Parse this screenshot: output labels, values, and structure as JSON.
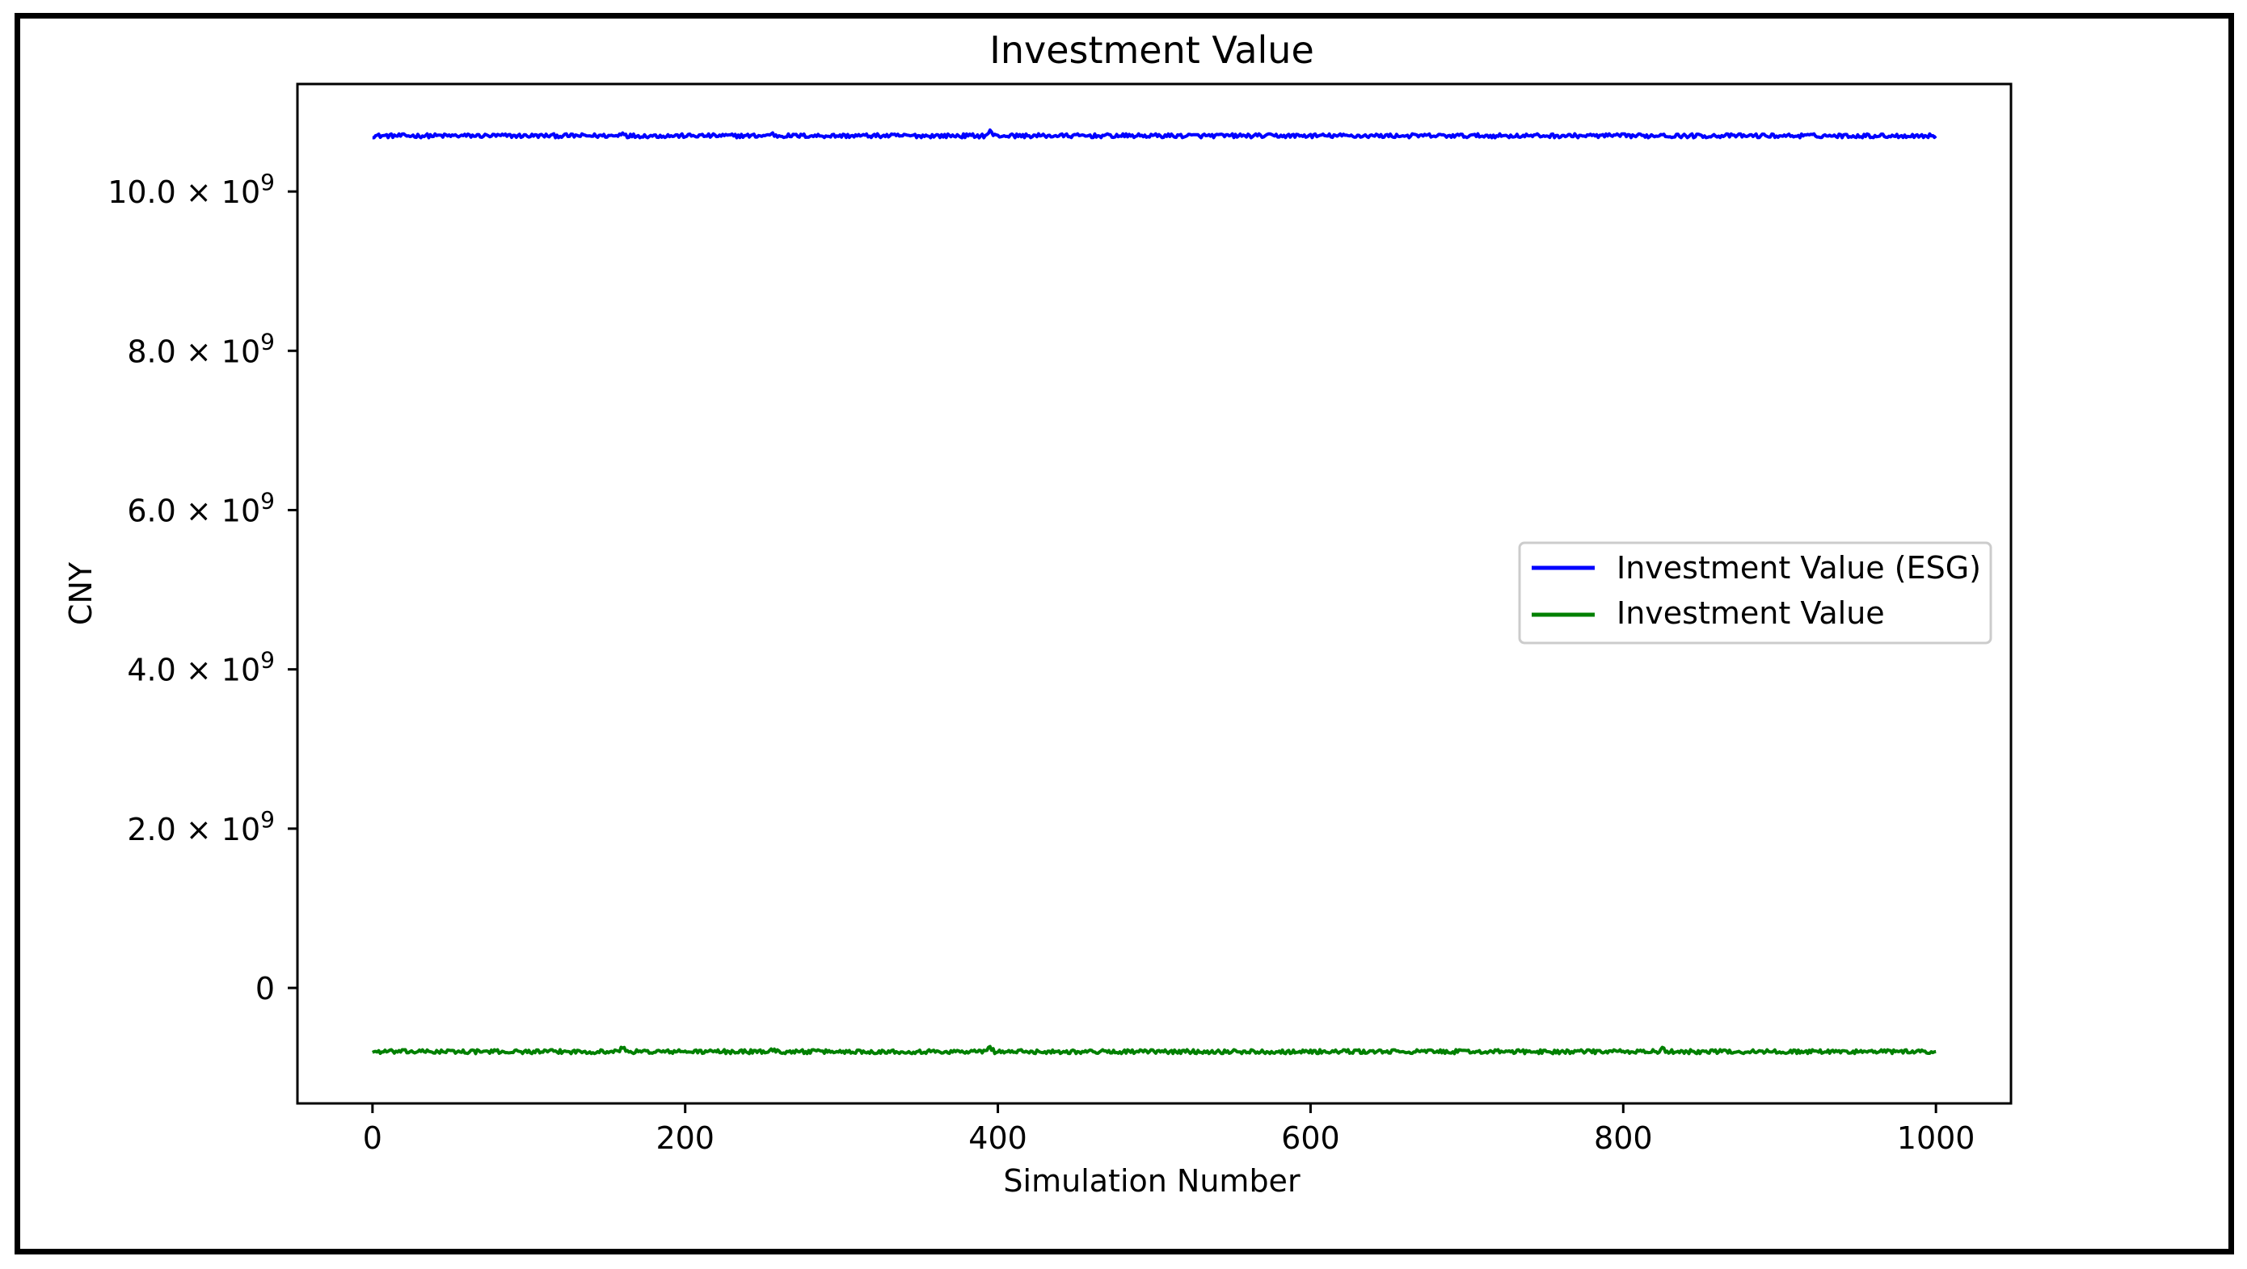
{
  "chart_data": {
    "type": "line",
    "title": "Investment Value",
    "xlabel": "Simulation Number",
    "ylabel": "CNY",
    "xlim": [
      -48,
      1048
    ],
    "ylim": [
      -1450000000,
      11350000000
    ],
    "x_ticks": [
      0,
      200,
      400,
      600,
      800,
      1000
    ],
    "x_tick_labels": [
      "0",
      "200",
      "400",
      "600",
      "800",
      "1000"
    ],
    "y_ticks": [
      0,
      2000000000,
      4000000000,
      6000000000,
      8000000000,
      10000000000
    ],
    "y_tick_labels": [
      {
        "mantissa": "0",
        "exponent": ""
      },
      {
        "mantissa": "2.0",
        "exponent": "9"
      },
      {
        "mantissa": "4.0",
        "exponent": "9"
      },
      {
        "mantissa": "6.0",
        "exponent": "9"
      },
      {
        "mantissa": "8.0",
        "exponent": "9"
      },
      {
        "mantissa": "10.0",
        "exponent": "9"
      }
    ],
    "grid": false,
    "legend_position": "center-right",
    "series": [
      {
        "name": "Investment Value (ESG)",
        "color": "#0000ff",
        "x_start": 0,
        "x_end": 1000,
        "n_points": 1001,
        "mean": 10700000000,
        "noise": 25000000,
        "spikes": [
          [
            160,
            45000000
          ],
          [
            395,
            55000000
          ],
          [
            255,
            30000000
          ],
          [
            825,
            25000000
          ]
        ]
      },
      {
        "name": "Investment Value",
        "color": "#008000",
        "x_start": 0,
        "x_end": 1000,
        "n_points": 1001,
        "mean": -800000000,
        "noise": 25000000,
        "spikes": [
          [
            160,
            55000000
          ],
          [
            395,
            60000000
          ],
          [
            255,
            30000000
          ],
          [
            825,
            30000000
          ]
        ]
      }
    ]
  }
}
